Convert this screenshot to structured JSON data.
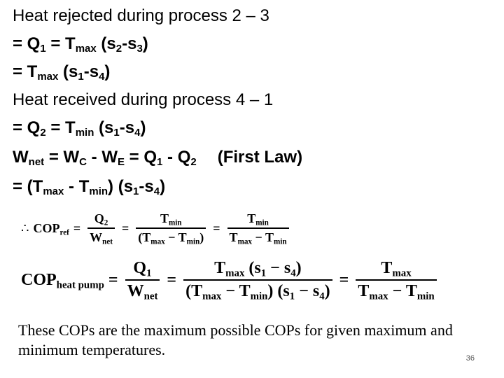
{
  "lines": {
    "l1": "Heat rejected during process 2 – 3",
    "l2": {
      "a": "= Q",
      "b": "1",
      "c": " = T",
      "d": "max",
      "e": " (s",
      "f": "2",
      "g": "-s",
      "h": "3",
      "i": ")"
    },
    "l3": {
      "a": "= T",
      "b": "max",
      "c": " (s",
      "d": "1",
      "e": "-s",
      "f": "4",
      "g": ")"
    },
    "l4": "Heat received during process 4 – 1",
    "l5": {
      "a": "= Q",
      "b": "2",
      "c": " = T",
      "d": "min",
      "e": " (s",
      "f": "1",
      "g": "-s",
      "h": "4",
      "i": ")"
    },
    "l6": {
      "a": "W",
      "b": "net",
      "c": " = W",
      "d": "C",
      "e": " - W",
      "f": "E",
      "g": " = Q",
      "h": "1",
      "i": " - Q",
      "j": "2",
      "k": "(First Law)"
    },
    "l7": {
      "a": "= (T",
      "b": "max",
      "c": " - T",
      "d": "min",
      "e": ") (s",
      "f": "1",
      "g": "-s",
      "h": "4",
      "i": ")"
    }
  },
  "eq_ref": {
    "therefore": "∴",
    "lhs": "COP",
    "lhs_sub": "ref",
    "eq": "=",
    "f1_num": "Q",
    "f1_num_sub": "2",
    "f1_den": "W",
    "f1_den_sub": "net",
    "f2_num": "T",
    "f2_num_sub": "min",
    "f2_den_a": "(T",
    "f2_den_a_sub": "max",
    "f2_den_b": " − T",
    "f2_den_b_sub": "min",
    "f2_den_c": ")",
    "f3_num": "T",
    "f3_num_sub": "min",
    "f3_den_a": "T",
    "f3_den_a_sub": "max",
    "f3_den_b": " − T",
    "f3_den_b_sub": "min"
  },
  "eq_hp": {
    "lhs": "COP",
    "lhs_sub": "heat pump",
    "eq": "=",
    "f1_num": "Q",
    "f1_num_sub": "1",
    "f1_den": "W",
    "f1_den_sub": "net",
    "f2_num_a": "T",
    "f2_num_a_sub": "max",
    "f2_num_b": " (s",
    "f2_num_b_sub": "1",
    "f2_num_c": " − s",
    "f2_num_c_sub": "4",
    "f2_num_d": ")",
    "f2_den_a": "(T",
    "f2_den_a_sub": "max",
    "f2_den_b": " − T",
    "f2_den_b_sub": "min",
    "f2_den_c": ") (s",
    "f2_den_c_sub": "1",
    "f2_den_d": " − s",
    "f2_den_d_sub": "4",
    "f2_den_e": ")",
    "f3_num": "T",
    "f3_num_sub": "max",
    "f3_den_a": "T",
    "f3_den_a_sub": "max",
    "f3_den_b": " − T",
    "f3_den_b_sub": "min"
  },
  "footer": "These COPs are the maximum possible COPs for given maximum and minimum temperatures.",
  "page_number": "36"
}
